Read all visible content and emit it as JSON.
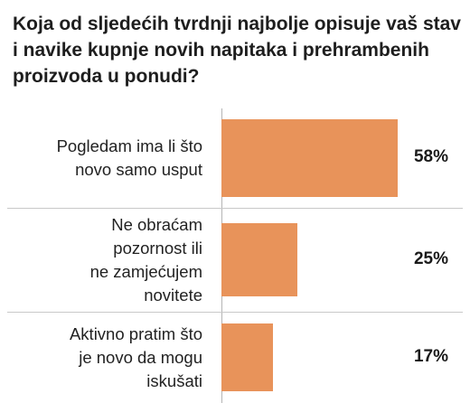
{
  "question": {
    "title": "Koja od sljedećih tvrdnji najbolje opisuje vaš stav i navike kupnje novih napitaka i prehrambenih proizvoda u ponudi?"
  },
  "colors": {
    "bar": "#e8935a",
    "divider": "#c8c8c8"
  },
  "chart_data": {
    "type": "bar",
    "orientation": "horizontal",
    "categories": [
      "Pogledam ima li što novo samo usput",
      "Ne obraćam pozornost ili ne zamjećujem novitete",
      "Aktivno pratim što je novo da mogu iskušati"
    ],
    "values": [
      58,
      25,
      17
    ],
    "value_labels": [
      "58%",
      "25%",
      "17%"
    ],
    "title": "Koja od sljedećih tvrdnji najbolje opisuje vaš stav i navike kupnje novih napitaka i prehrambenih proizvoda u ponudi?",
    "xlim": [
      0,
      58
    ],
    "grid": false,
    "legend": "none"
  },
  "rows": [
    {
      "label": "Pogledam ima li što\nnovo samo usput",
      "value_label": "58%"
    },
    {
      "label": "Ne obraćam\npozornost ili\nne zamjećujem\nnovitete",
      "value_label": "25%"
    },
    {
      "label": "Aktivno pratim što\nje novo da mogu\niskušati",
      "value_label": "17%"
    }
  ]
}
